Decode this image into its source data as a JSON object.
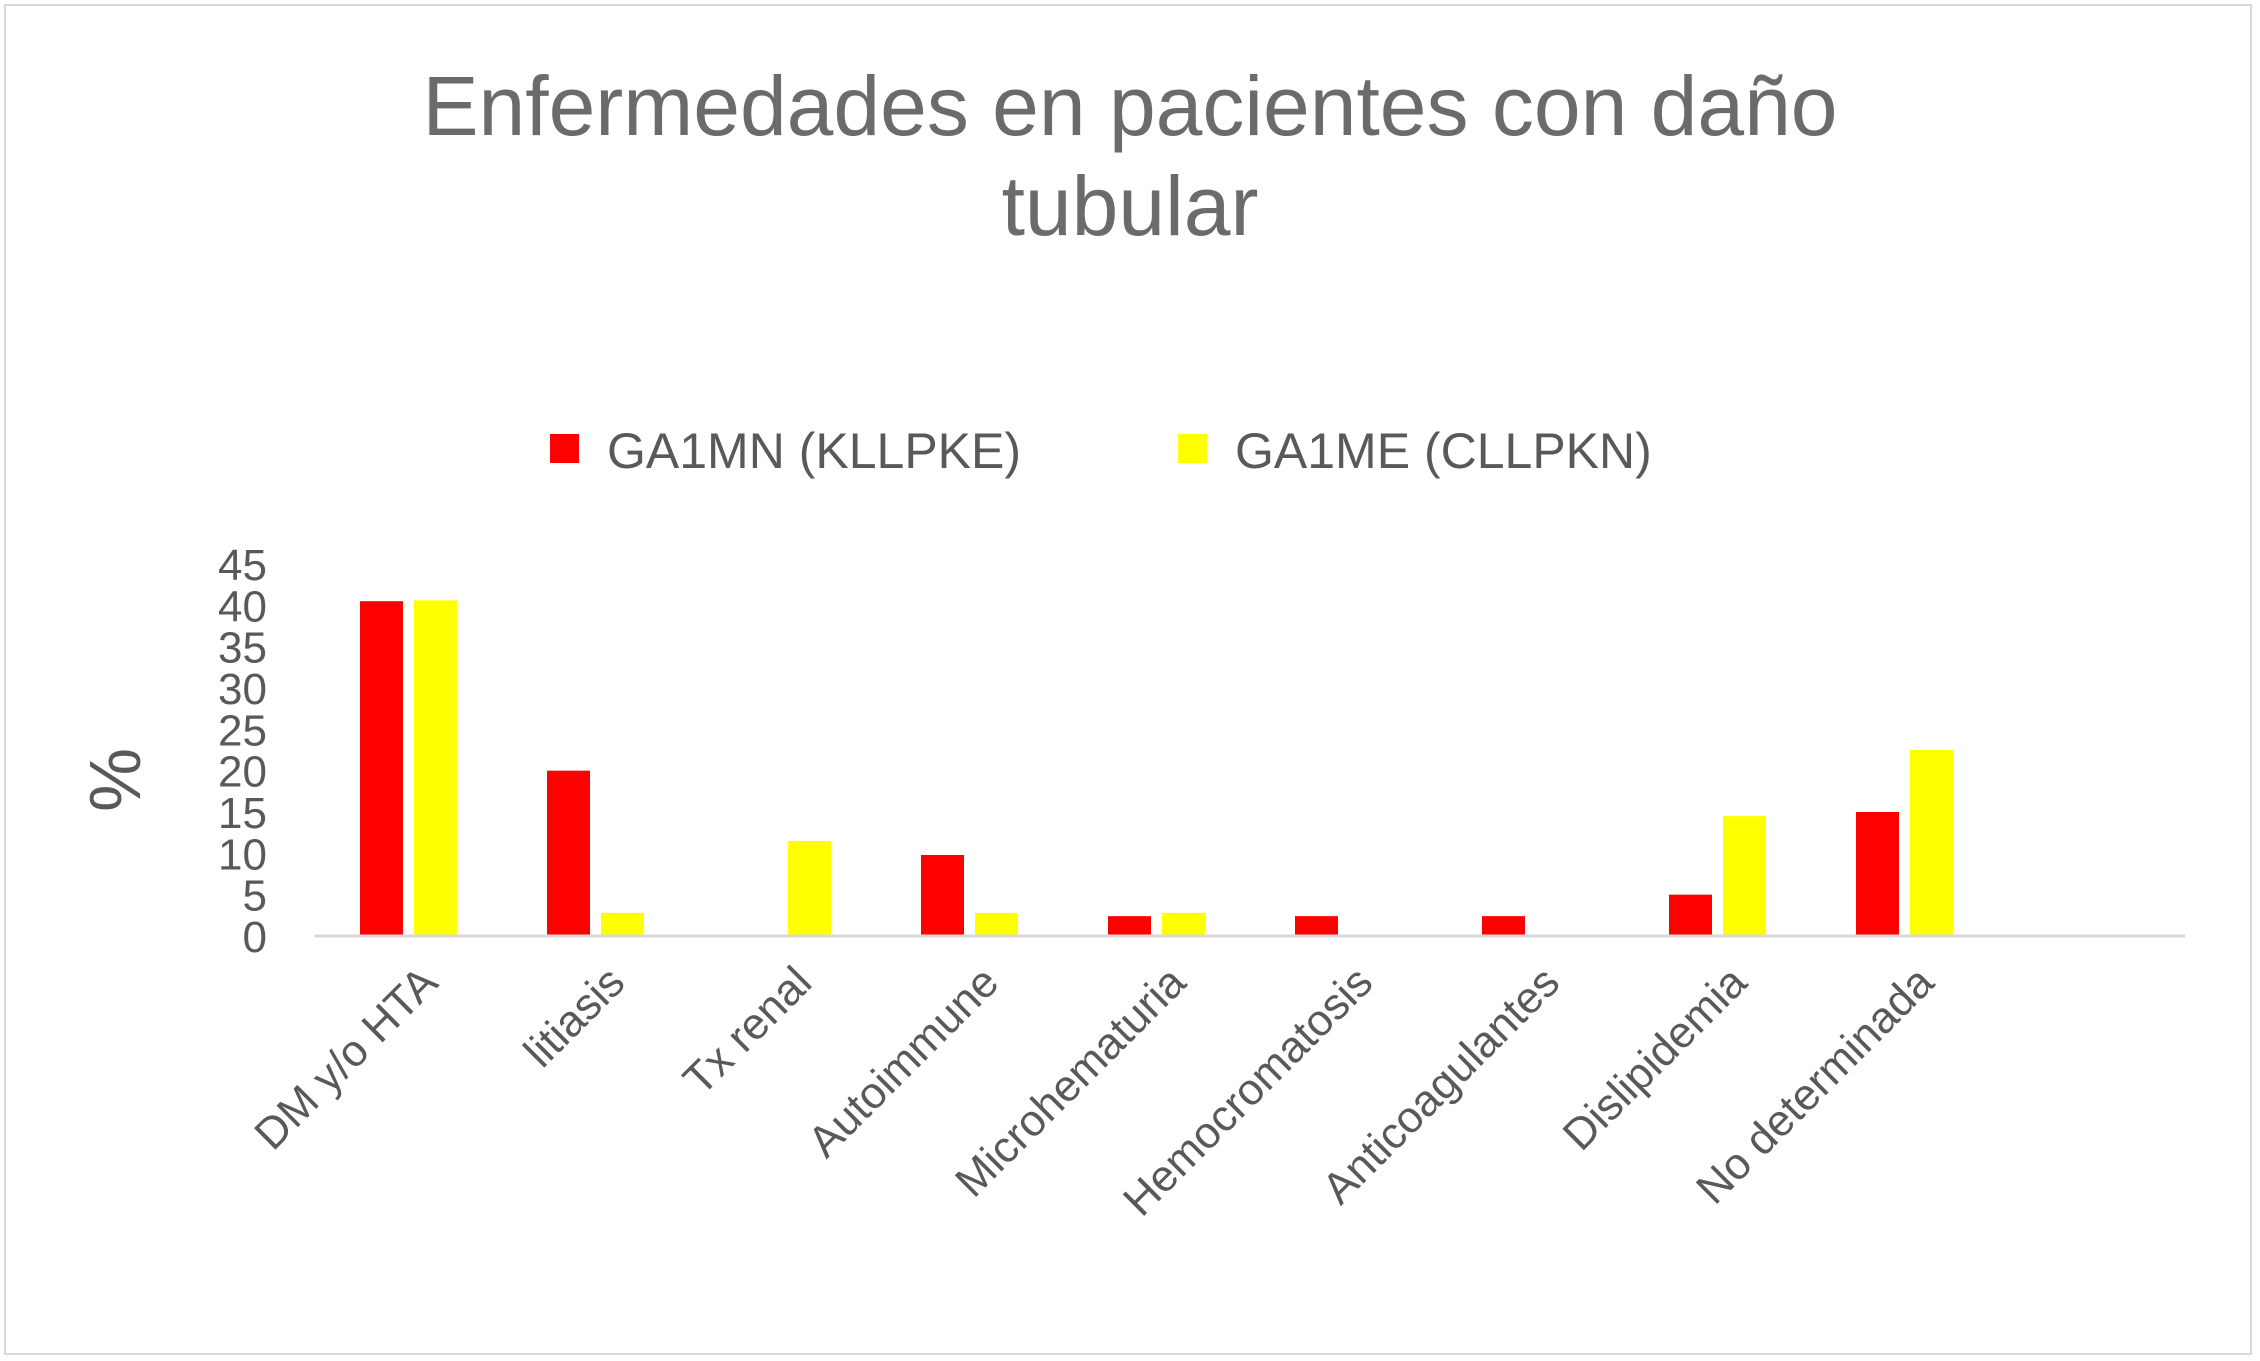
{
  "chart_data": {
    "type": "bar",
    "title_lines": [
      "Enfermedades en pacientes con daño",
      "tubular"
    ],
    "ylabel": "%",
    "xlabel": "",
    "ylim": [
      0,
      45
    ],
    "yticks": [
      "0",
      "5",
      "10",
      "15",
      "20",
      "25",
      "30",
      "35",
      "40",
      "45"
    ],
    "categories": [
      "DM y/o HTA",
      "litiasis",
      "Tx  renal",
      "Autoimmune",
      "Microhematuria",
      "Hemocromatosis",
      "Anticoagulantes",
      "Dislipidemia",
      "No determinada"
    ],
    "series": [
      {
        "name": "GA1MN (KLLPKE)",
        "color": "#ff0000",
        "values": [
          40.5,
          20,
          0,
          9.8,
          2.4,
          2.4,
          2.4,
          5,
          15
        ]
      },
      {
        "name": "GA1ME (CLLPKN)",
        "color": "#ffff00",
        "values": [
          40.6,
          2.8,
          11.5,
          2.8,
          2.8,
          0,
          0,
          14.5,
          22.5
        ]
      }
    ],
    "grid": false,
    "legend_position": "top-center"
  }
}
